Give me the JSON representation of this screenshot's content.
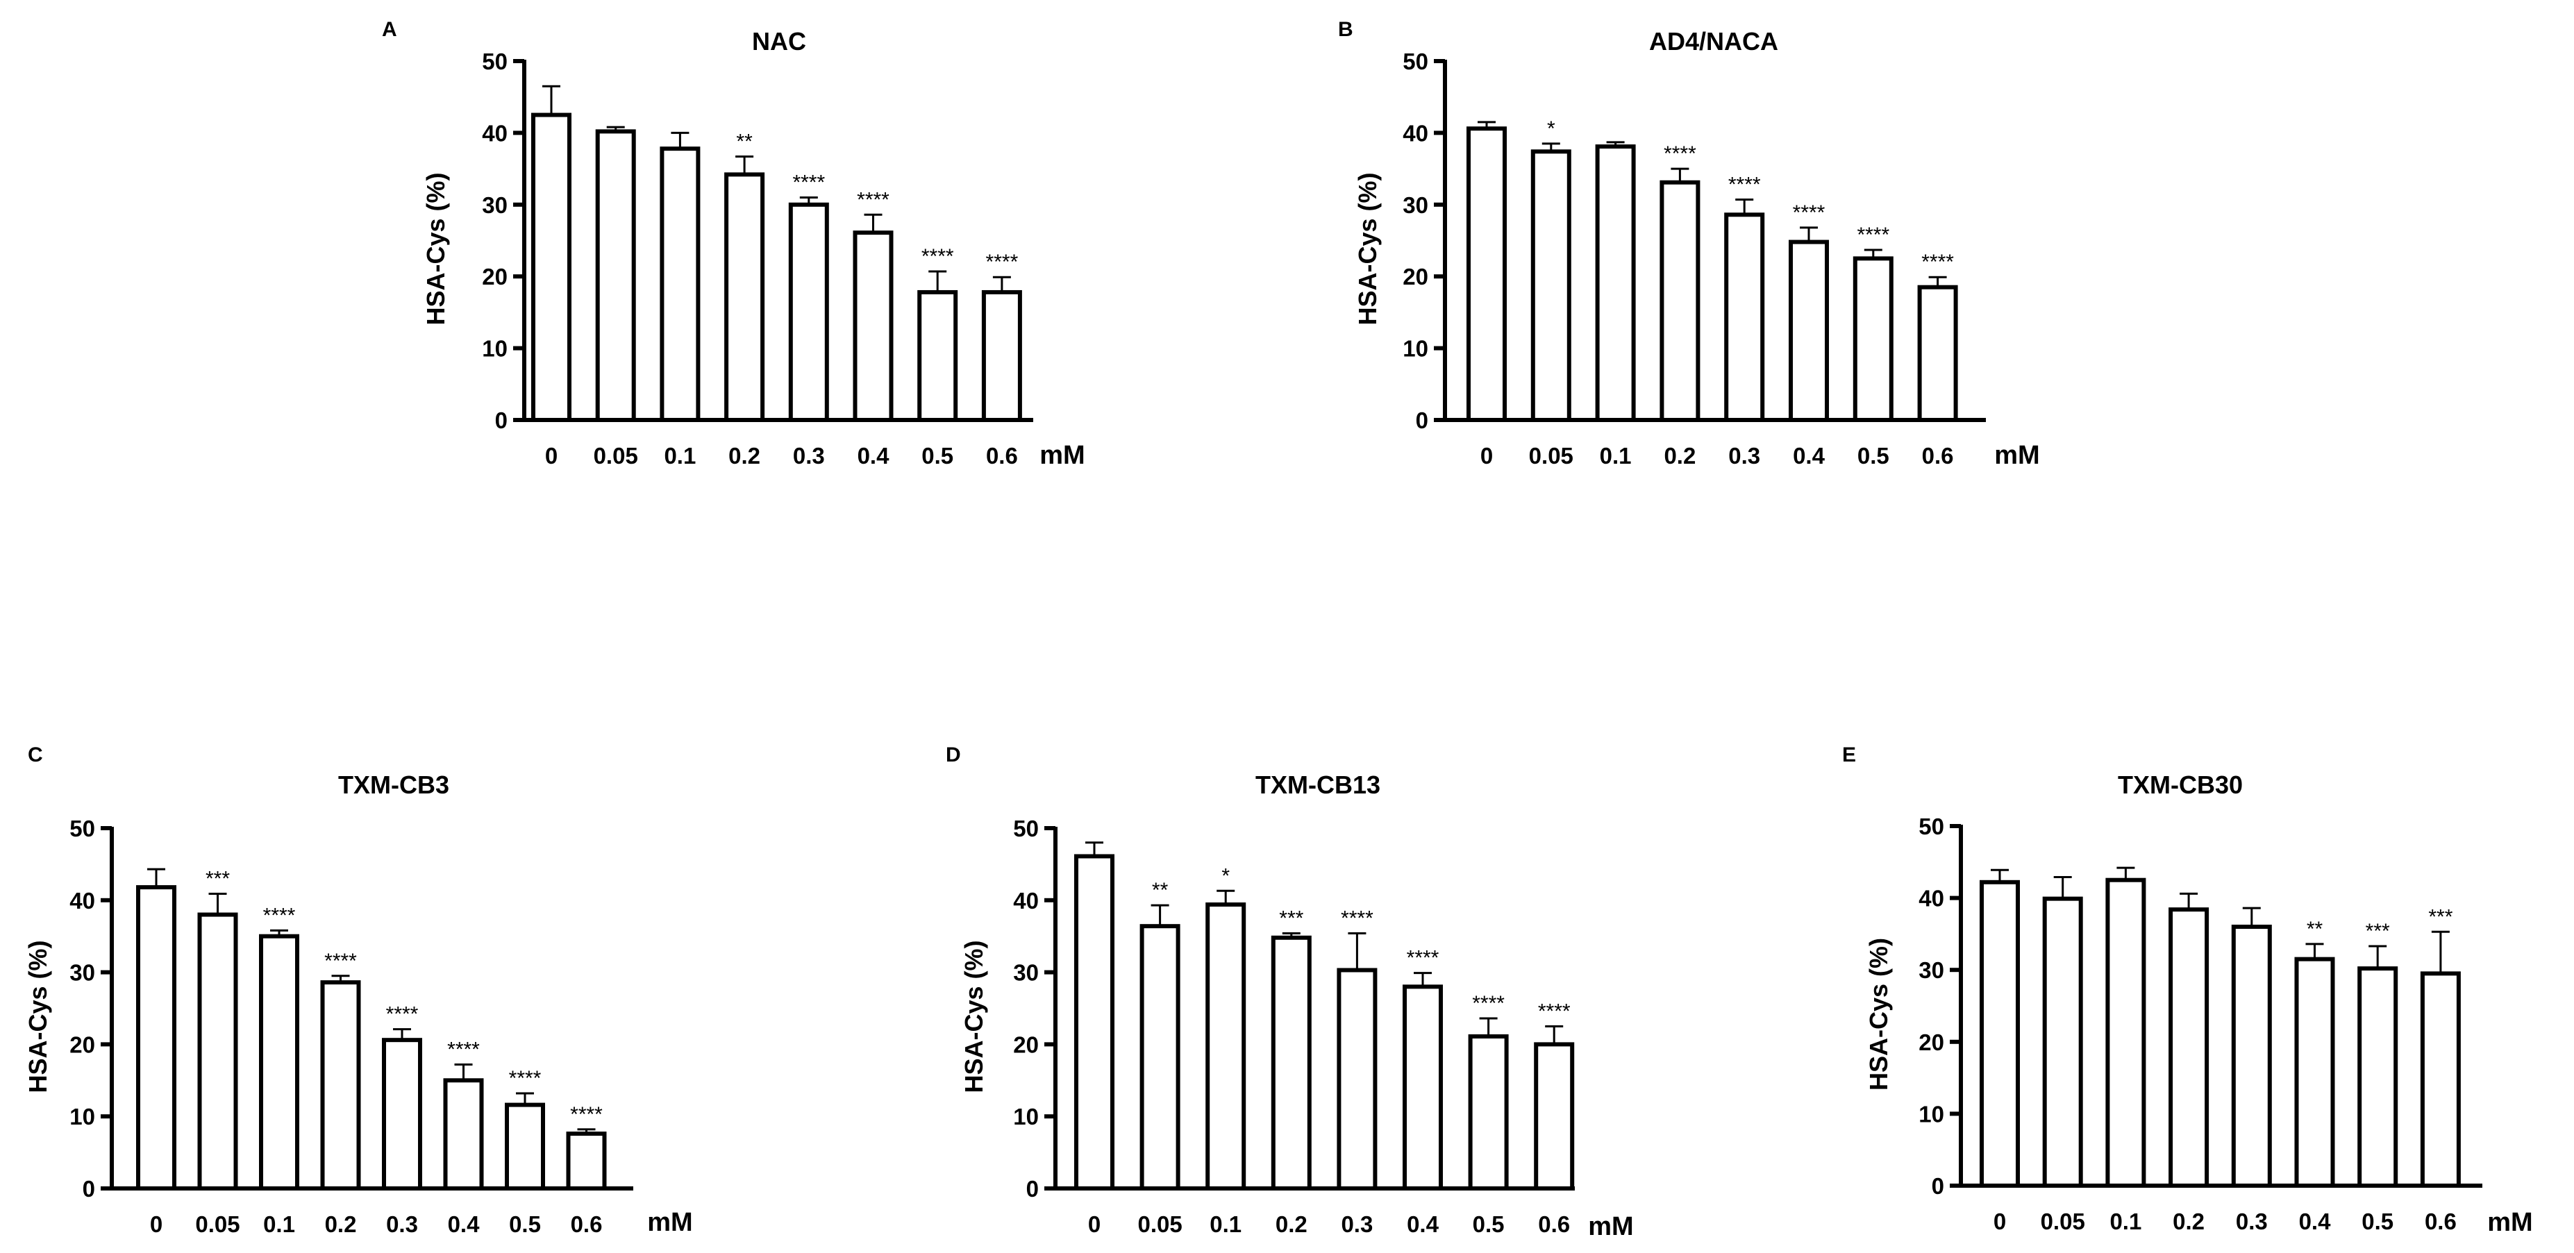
{
  "chart_data": [
    {
      "panel": "A",
      "type": "bar",
      "title": "NAC",
      "ylabel": "HSA-Cys (%)",
      "unit": "mM",
      "ylim": [
        0,
        50
      ],
      "yticks": [
        "0",
        "10",
        "20",
        "30",
        "40",
        "50"
      ],
      "categories": [
        "0",
        "0.05",
        "0.1",
        "0.2",
        "0.3",
        "0.4",
        "0.5",
        "0.6"
      ],
      "values": [
        42.5,
        40.2,
        37.8,
        34.2,
        30.0,
        26.1,
        17.8,
        17.8
      ],
      "errors": [
        4.0,
        0.6,
        2.2,
        2.5,
        1.0,
        2.5,
        2.9,
        2.1
      ],
      "significance": [
        "",
        "",
        "",
        "**",
        "****",
        "****",
        "****",
        "****"
      ]
    },
    {
      "panel": "B",
      "type": "bar",
      "title": "AD4/NACA",
      "ylabel": "HSA-Cys (%)",
      "unit": "mM",
      "ylim": [
        0,
        50
      ],
      "yticks": [
        "0",
        "10",
        "20",
        "30",
        "40",
        "50"
      ],
      "categories": [
        "0",
        "0.05",
        "0.1",
        "0.2",
        "0.3",
        "0.4",
        "0.5",
        "0.6"
      ],
      "values": [
        40.6,
        37.4,
        38.1,
        33.1,
        28.6,
        24.8,
        22.5,
        18.5
      ],
      "errors": [
        0.9,
        1.1,
        0.6,
        1.9,
        2.1,
        2.0,
        1.2,
        1.4
      ],
      "significance": [
        "",
        "*",
        "",
        "****",
        "****",
        "****",
        "****",
        "****"
      ]
    },
    {
      "panel": "C",
      "type": "bar",
      "title": "TXM-CB3",
      "ylabel": "HSA-Cys (%)",
      "unit": "mM",
      "ylim": [
        0,
        50
      ],
      "yticks": [
        "0",
        "10",
        "20",
        "30",
        "40",
        "50"
      ],
      "categories": [
        "0",
        "0.05",
        "0.1",
        "0.2",
        "0.3",
        "0.4",
        "0.5",
        "0.6"
      ],
      "values": [
        41.8,
        38.0,
        35.0,
        28.6,
        20.6,
        15.0,
        11.6,
        7.6
      ],
      "errors": [
        2.5,
        2.9,
        0.8,
        0.9,
        1.5,
        2.2,
        1.6,
        0.6
      ],
      "significance": [
        "",
        "***",
        "****",
        "****",
        "****",
        "****",
        "****",
        "****"
      ]
    },
    {
      "panel": "D",
      "type": "bar",
      "title": "TXM-CB13",
      "ylabel": "HSA-Cys (%)",
      "unit": "mM",
      "ylim": [
        0,
        50
      ],
      "yticks": [
        "0",
        "10",
        "20",
        "30",
        "40",
        "50"
      ],
      "categories": [
        "0",
        "0.05",
        "0.1",
        "0.2",
        "0.3",
        "0.4",
        "0.5",
        "0.6"
      ],
      "values": [
        46.1,
        36.4,
        39.4,
        34.8,
        30.3,
        28.0,
        21.1,
        20.0
      ],
      "errors": [
        1.9,
        2.9,
        1.9,
        0.6,
        5.1,
        1.9,
        2.5,
        2.5
      ],
      "significance": [
        "",
        "**",
        "*",
        "***",
        "****",
        "****",
        "****",
        "****"
      ]
    },
    {
      "panel": "E",
      "type": "bar",
      "title": "TXM-CB30",
      "ylabel": "HSA-Cys (%)",
      "unit": "mM",
      "ylim": [
        0,
        50
      ],
      "yticks": [
        "0",
        "10",
        "20",
        "30",
        "40",
        "50"
      ],
      "categories": [
        "0",
        "0.05",
        "0.1",
        "0.2",
        "0.3",
        "0.4",
        "0.5",
        "0.6"
      ],
      "values": [
        42.2,
        39.9,
        42.5,
        38.4,
        36.0,
        31.5,
        30.2,
        29.5
      ],
      "errors": [
        1.7,
        3.0,
        1.7,
        2.2,
        2.6,
        2.1,
        3.1,
        5.8
      ],
      "significance": [
        "",
        "",
        "",
        "",
        "",
        "**",
        "***",
        "***"
      ]
    }
  ]
}
